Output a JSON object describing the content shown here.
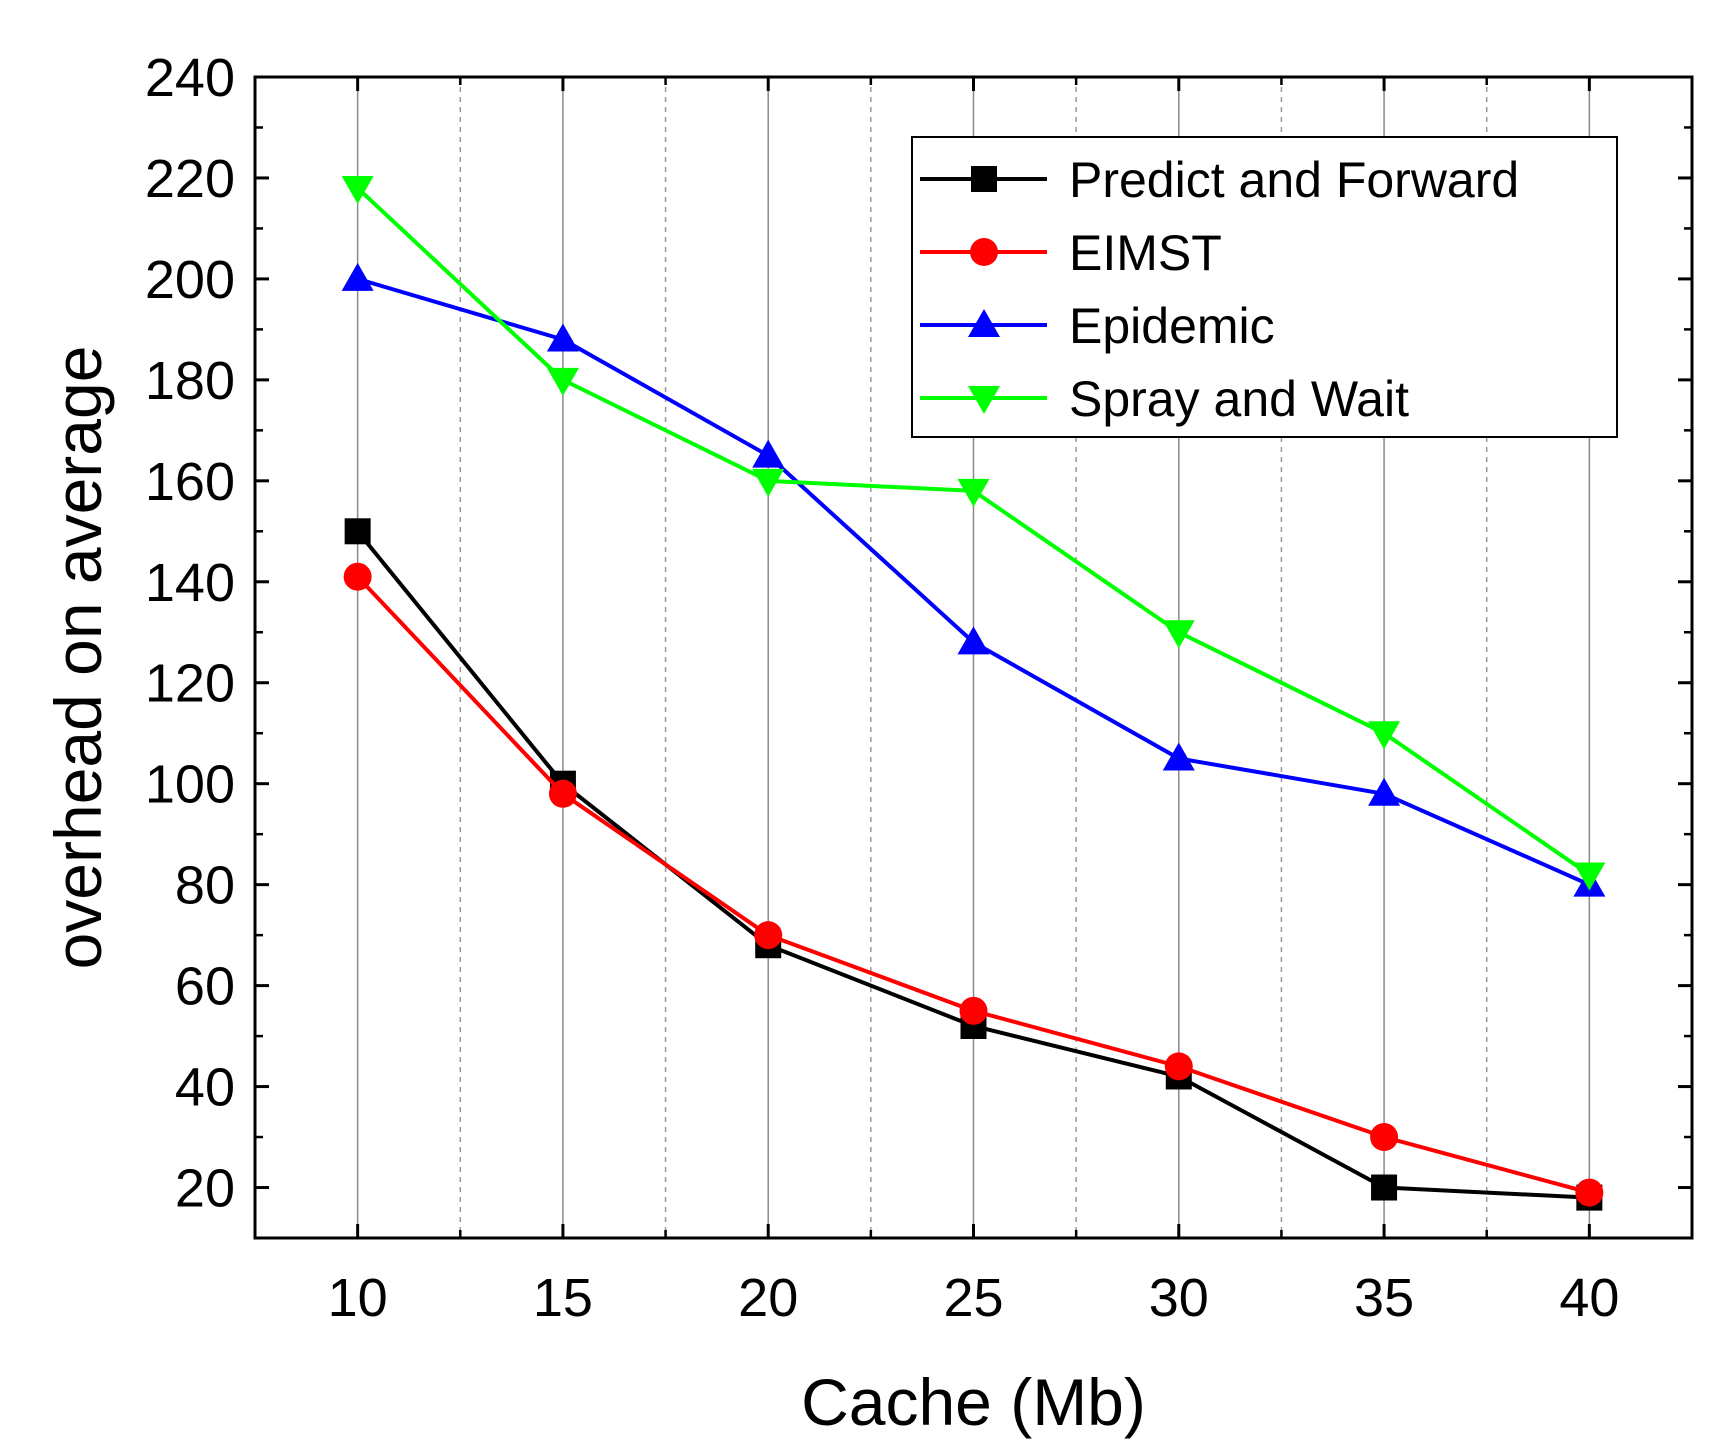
{
  "chart_data": {
    "type": "line",
    "xlabel": "Cache (Mb)",
    "ylabel": "overhead on average",
    "xlim": [
      7.5,
      42.5
    ],
    "ylim": [
      10,
      240
    ],
    "x_ticks": [
      10,
      15,
      20,
      25,
      30,
      35,
      40
    ],
    "y_ticks": [
      20,
      40,
      60,
      80,
      100,
      120,
      140,
      160,
      180,
      200,
      220,
      240
    ],
    "x_minor_grid": [
      12.5,
      17.5,
      22.5,
      27.5,
      32.5,
      37.5
    ],
    "grid": "vertical",
    "legend_position": "top-right",
    "x": [
      10,
      15,
      20,
      25,
      30,
      35,
      40
    ],
    "series": [
      {
        "name": "Predict and Forward",
        "marker": "square",
        "color": "#000000",
        "values": [
          150,
          100,
          68,
          52,
          42,
          20,
          18
        ]
      },
      {
        "name": "EIMST",
        "marker": "circle",
        "color": "#ff0000",
        "values": [
          141,
          98,
          70,
          55,
          44,
          30,
          19
        ]
      },
      {
        "name": "Epidemic",
        "marker": "triangle-up",
        "color": "#0000ff",
        "values": [
          200,
          188,
          165,
          128,
          105,
          98,
          80
        ]
      },
      {
        "name": "Spray and Wait",
        "marker": "triangle-down",
        "color": "#00ff00",
        "values": [
          218,
          180,
          160,
          158,
          130,
          110,
          82
        ]
      }
    ]
  }
}
